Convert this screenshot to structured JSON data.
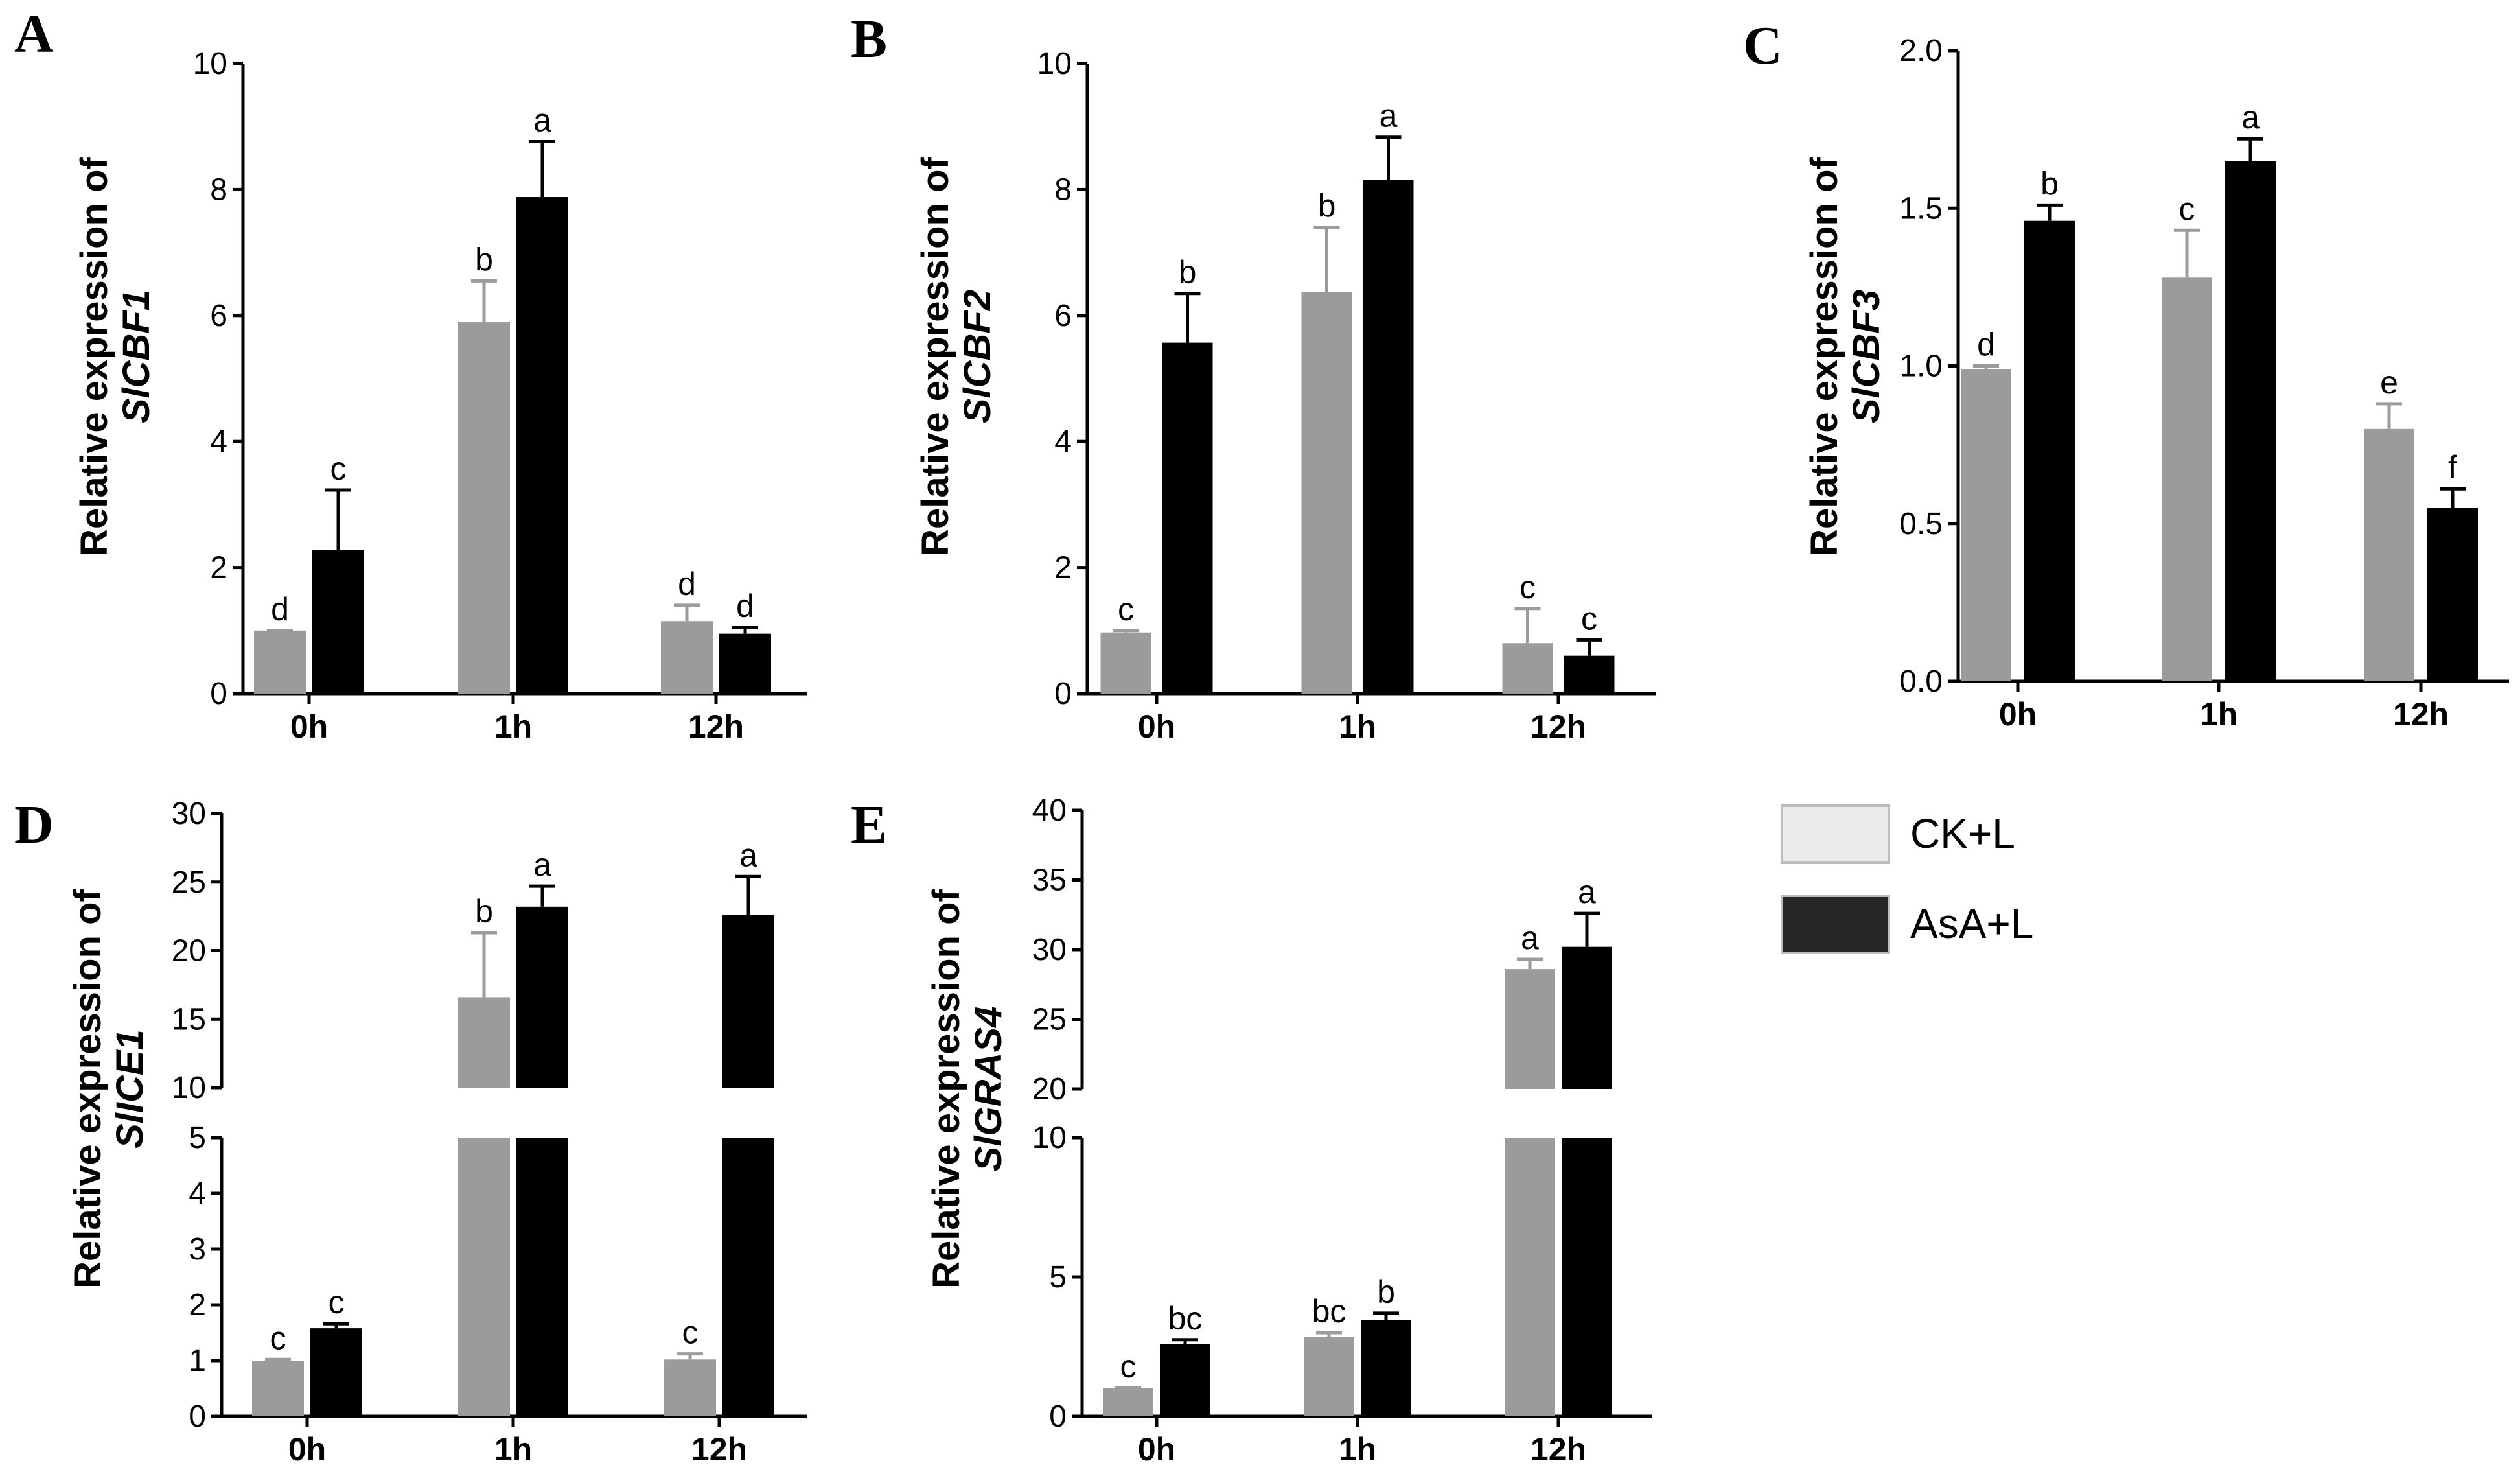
{
  "legend": {
    "series": [
      {
        "name": "CK+L",
        "color": "#9b9b9b",
        "swatch_color": "#ebebeb"
      },
      {
        "name": "AsA+L",
        "color": "#000000",
        "swatch_color": "#262626"
      }
    ]
  },
  "chart_data": [
    {
      "panel": "A",
      "type": "bar",
      "ylabel_line1": "Relative expression of",
      "ylabel_line2": "SlCBF1",
      "categories": [
        "0h",
        "1h",
        "12h"
      ],
      "ylim": [
        0,
        10
      ],
      "yticks": [
        0,
        2,
        4,
        6,
        8,
        10
      ],
      "ytick_labels": [
        "0",
        "2",
        "4",
        "6",
        "8",
        "10"
      ],
      "series": [
        {
          "name": "CK+L",
          "values": [
            1.0,
            5.9,
            1.15
          ],
          "errors": [
            0.0,
            0.65,
            0.25
          ],
          "letters": [
            "d",
            "b",
            "d"
          ]
        },
        {
          "name": "AsA+L",
          "values": [
            2.28,
            7.88,
            0.95
          ],
          "errors": [
            0.95,
            0.88,
            0.1
          ],
          "letters": [
            "c",
            "a",
            "d"
          ]
        }
      ]
    },
    {
      "panel": "B",
      "type": "bar",
      "ylabel_line1": "Relative expression of",
      "ylabel_line2": "SlCBF2",
      "categories": [
        "0h",
        "1h",
        "12h"
      ],
      "ylim": [
        0,
        10
      ],
      "yticks": [
        0,
        2,
        4,
        6,
        8,
        10
      ],
      "ytick_labels": [
        "0",
        "2",
        "4",
        "6",
        "8",
        "10"
      ],
      "series": [
        {
          "name": "CK+L",
          "values": [
            0.97,
            6.37,
            0.8
          ],
          "errors": [
            0.03,
            1.03,
            0.55
          ],
          "letters": [
            "c",
            "b",
            "c"
          ]
        },
        {
          "name": "AsA+L",
          "values": [
            5.57,
            8.15,
            0.6
          ],
          "errors": [
            0.78,
            0.68,
            0.25
          ],
          "letters": [
            "b",
            "a",
            "c"
          ]
        }
      ]
    },
    {
      "panel": "C",
      "type": "bar",
      "ylabel_line1": "Relative expression of",
      "ylabel_line2": "SlCBF3",
      "categories": [
        "0h",
        "1h",
        "12h"
      ],
      "ylim": [
        0,
        2.0
      ],
      "yticks": [
        0,
        0.5,
        1.0,
        1.5,
        2.0
      ],
      "ytick_labels": [
        "0.0",
        "0.5",
        "1.0",
        "1.5",
        "2.0"
      ],
      "series": [
        {
          "name": "CK+L",
          "values": [
            0.99,
            1.28,
            0.8
          ],
          "errors": [
            0.01,
            0.15,
            0.08
          ],
          "letters": [
            "d",
            "c",
            "e"
          ]
        },
        {
          "name": "AsA+L",
          "values": [
            1.46,
            1.65,
            0.55
          ],
          "errors": [
            0.05,
            0.07,
            0.06
          ],
          "letters": [
            "b",
            "a",
            "f"
          ]
        }
      ]
    },
    {
      "panel": "D",
      "type": "bar",
      "ylabel_line1": "Relative expression of",
      "ylabel_line2": "SlICE1",
      "categories": [
        "0h",
        "1h",
        "12h"
      ],
      "broken_axis": {
        "lower": [
          0,
          5
        ],
        "upper": [
          10,
          30
        ]
      },
      "yticks_lower": [
        0,
        1,
        2,
        3,
        4,
        5
      ],
      "ytick_labels_lower": [
        "0",
        "1",
        "2",
        "3",
        "4",
        "5"
      ],
      "yticks_upper": [
        10,
        15,
        20,
        25,
        30
      ],
      "ytick_labels_upper": [
        "10",
        "15",
        "20",
        "25",
        "30"
      ],
      "series": [
        {
          "name": "CK+L",
          "values": [
            1.0,
            16.6,
            1.02
          ],
          "errors": [
            0.02,
            4.7,
            0.1
          ],
          "letters": [
            "c",
            "b",
            "c"
          ]
        },
        {
          "name": "AsA+L",
          "values": [
            1.58,
            23.2,
            22.6
          ],
          "errors": [
            0.08,
            1.5,
            2.8
          ],
          "letters": [
            "c",
            "a",
            "a"
          ]
        }
      ]
    },
    {
      "panel": "E",
      "type": "bar",
      "ylabel_line1": "Relative expression of",
      "ylabel_line2": "SlGRAS4",
      "categories": [
        "0h",
        "1h",
        "12h"
      ],
      "broken_axis": {
        "lower": [
          0,
          10
        ],
        "upper": [
          20,
          40
        ]
      },
      "yticks_lower": [
        0,
        5,
        10
      ],
      "ytick_labels_lower": [
        "0",
        "5",
        "10"
      ],
      "yticks_upper": [
        20,
        25,
        30,
        35,
        40
      ],
      "ytick_labels_upper": [
        "20",
        "25",
        "30",
        "35",
        "40"
      ],
      "series": [
        {
          "name": "CK+L",
          "values": [
            1.0,
            2.85,
            28.6
          ],
          "errors": [
            0.02,
            0.15,
            0.7
          ],
          "letters": [
            "c",
            "bc",
            "a"
          ]
        },
        {
          "name": "AsA+L",
          "values": [
            2.6,
            3.45,
            30.2
          ],
          "errors": [
            0.15,
            0.25,
            2.4
          ],
          "letters": [
            "bc",
            "b",
            "a"
          ]
        }
      ]
    }
  ]
}
